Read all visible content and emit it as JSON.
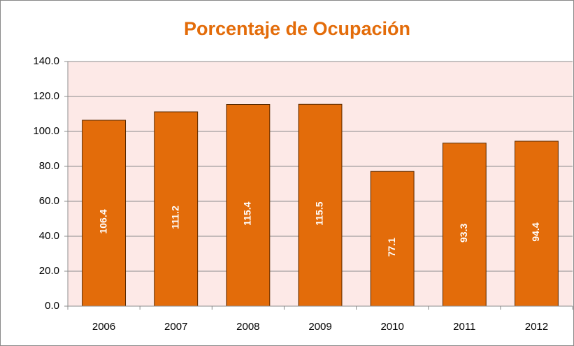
{
  "chart_data": {
    "type": "bar",
    "title": "Porcentaje de Ocupación",
    "categories": [
      "2006",
      "2007",
      "2008",
      "2009",
      "2010",
      "2011",
      "2012"
    ],
    "values": [
      106.4,
      111.2,
      115.4,
      115.5,
      77.1,
      93.3,
      94.4
    ],
    "color": "#e36c0a",
    "ylim": [
      0,
      140
    ],
    "yticks": [
      {
        "value": 0,
        "label": "0.0"
      },
      {
        "value": 20,
        "label": "20.0"
      },
      {
        "value": 40,
        "label": "40.0"
      },
      {
        "value": 60,
        "label": "60.0"
      },
      {
        "value": 80,
        "label": "80.0"
      },
      {
        "value": 100,
        "label": "100.0"
      },
      {
        "value": 120,
        "label": "120.0"
      },
      {
        "value": 140,
        "label": "140.0"
      }
    ],
    "grid": true
  }
}
